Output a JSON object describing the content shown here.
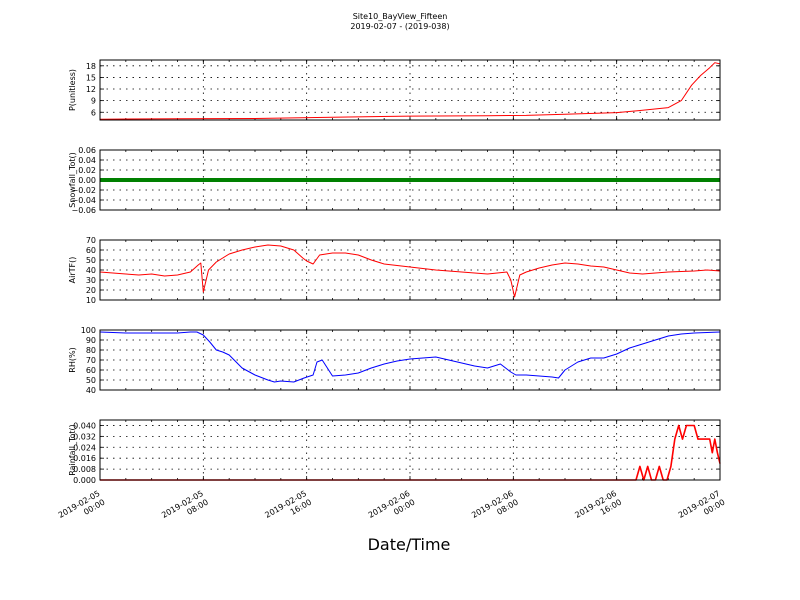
{
  "figure": {
    "title": "Site10_BayView_Fifteen",
    "subtitle": "2019-02-07 - (2019-038)",
    "xlabel": "Date/Time"
  },
  "x_ticks": [
    {
      "value": 0,
      "line1": "2019-02-05",
      "line2": "00:00"
    },
    {
      "value": 8,
      "line1": "2019-02-05",
      "line2": "08:00"
    },
    {
      "value": 16,
      "line1": "2019-02-05",
      "line2": "16:00"
    },
    {
      "value": 24,
      "line1": "2019-02-06",
      "line2": "00:00"
    },
    {
      "value": 32,
      "line1": "2019-02-06",
      "line2": "08:00"
    },
    {
      "value": 40,
      "line1": "2019-02-06",
      "line2": "16:00"
    },
    {
      "value": 48,
      "line1": "2019-02-07",
      "line2": "00:00"
    }
  ],
  "chart_data": [
    {
      "type": "line",
      "ylabel": "P(unitless)",
      "color": "#ff0000",
      "ylim": [
        4,
        19.5
      ],
      "yticks": [
        6,
        9,
        12,
        15,
        18
      ],
      "ytick_labels": [
        "6",
        "9",
        "12",
        "15",
        "18"
      ],
      "xlim": [
        0,
        48
      ],
      "grid": true,
      "x": [
        0,
        6,
        12,
        18,
        24,
        30,
        33,
        36,
        40,
        42,
        44,
        45,
        45.8,
        46.5,
        47.2,
        47.6,
        48
      ],
      "y": [
        4.2,
        4.3,
        4.4,
        4.7,
        5.0,
        5.1,
        5.2,
        5.5,
        5.9,
        6.5,
        7.2,
        9.0,
        13.0,
        15.5,
        17.5,
        18.8,
        18.5
      ]
    },
    {
      "type": "line",
      "ylabel": "Snowfall_Tot()",
      "color": "#008000",
      "ylim": [
        -0.06,
        0.06
      ],
      "yticks": [
        -0.06,
        -0.04,
        -0.02,
        0.0,
        0.02,
        0.04,
        0.06
      ],
      "ytick_labels": [
        "−0.06",
        "−0.04",
        "−0.02",
        "0.00",
        "0.02",
        "0.04",
        "0.06"
      ],
      "xlim": [
        0,
        48
      ],
      "grid": true,
      "x": [
        0,
        48
      ],
      "y": [
        0,
        0
      ]
    },
    {
      "type": "line",
      "ylabel": "AirTF()",
      "color": "#ff0000",
      "ylim": [
        10,
        70
      ],
      "yticks": [
        10,
        20,
        30,
        40,
        50,
        60,
        70
      ],
      "ytick_labels": [
        "10",
        "20",
        "30",
        "40",
        "50",
        "60",
        "70"
      ],
      "xlim": [
        0,
        48
      ],
      "grid": true,
      "x": [
        0,
        1,
        2,
        3,
        4,
        5,
        6,
        7,
        7.6,
        7.8,
        8.0,
        8.4,
        9,
        10,
        11,
        12,
        13,
        14,
        15,
        15.7,
        16,
        16.5,
        17,
        18,
        19,
        20,
        21,
        22,
        24,
        26,
        28,
        30,
        31.5,
        31.8,
        32.1,
        32.5,
        33,
        34,
        35,
        36,
        37,
        38,
        39,
        40,
        41,
        42,
        43,
        44,
        46,
        47,
        48
      ],
      "y": [
        38,
        37,
        36,
        35,
        36,
        34,
        35,
        38,
        45,
        47,
        18,
        40,
        48,
        56,
        60,
        63,
        65,
        64,
        60,
        52,
        49,
        46,
        55,
        57,
        57,
        55,
        50,
        46,
        43,
        40,
        38,
        36,
        38,
        30,
        13,
        35,
        38,
        42,
        45,
        47,
        46,
        44,
        43,
        40,
        37,
        36,
        37,
        38,
        39,
        40,
        39
      ]
    },
    {
      "type": "line",
      "ylabel": "RH(%)",
      "color": "#0000ff",
      "ylim": [
        40,
        100
      ],
      "yticks": [
        40,
        50,
        60,
        70,
        80,
        90,
        100
      ],
      "ytick_labels": [
        "40",
        "50",
        "60",
        "70",
        "80",
        "90",
        "100"
      ],
      "xlim": [
        0,
        48
      ],
      "grid": true,
      "x": [
        0,
        2,
        4,
        6,
        7,
        7.5,
        8,
        8.5,
        9,
        9.5,
        10,
        11,
        12,
        13,
        13.5,
        14,
        15,
        15.8,
        16.5,
        16.8,
        17.2,
        18,
        19,
        20,
        21,
        22,
        23,
        24,
        25,
        26,
        27,
        28,
        29,
        30,
        31,
        31.6,
        31.8,
        32.2,
        33,
        34,
        35,
        35.5,
        36,
        37,
        38,
        39,
        40,
        41,
        42,
        43,
        44,
        45,
        46,
        48
      ],
      "y": [
        98,
        97,
        97,
        97,
        98,
        98,
        95,
        88,
        80,
        78,
        75,
        62,
        55,
        50,
        48,
        49,
        48,
        52,
        55,
        68,
        70,
        54,
        55,
        57,
        62,
        66,
        69,
        71,
        72,
        73,
        70,
        67,
        64,
        62,
        66,
        60,
        58,
        55,
        55,
        54,
        53,
        52,
        60,
        68,
        72,
        72,
        76,
        82,
        86,
        90,
        94,
        96,
        97,
        98
      ]
    },
    {
      "type": "line",
      "ylabel": "Rainfall_Tot()",
      "color": "#ff0000",
      "ylim": [
        0,
        0.044
      ],
      "yticks": [
        0.0,
        0.008,
        0.016,
        0.024,
        0.032,
        0.04
      ],
      "ytick_labels": [
        "0.000",
        "0.008",
        "0.016",
        "0.024",
        "0.032",
        "0.040"
      ],
      "xlim": [
        0,
        48
      ],
      "grid": true,
      "x": [
        0,
        41.2,
        41.5,
        41.8,
        42.1,
        42.4,
        42.7,
        43.0,
        43.3,
        43.6,
        43.9,
        44.2,
        44.5,
        44.8,
        45.1,
        45.4,
        45.7,
        46.0,
        46.3,
        46.6,
        46.9,
        47.2,
        47.4,
        47.6,
        47.8,
        48
      ],
      "y": [
        0,
        0,
        0.0,
        0.01,
        0.0,
        0.01,
        0.0,
        0.0,
        0.01,
        0.0,
        0.0,
        0.01,
        0.03,
        0.04,
        0.03,
        0.04,
        0.04,
        0.04,
        0.03,
        0.03,
        0.03,
        0.03,
        0.02,
        0.03,
        0.02,
        0.012
      ]
    }
  ]
}
